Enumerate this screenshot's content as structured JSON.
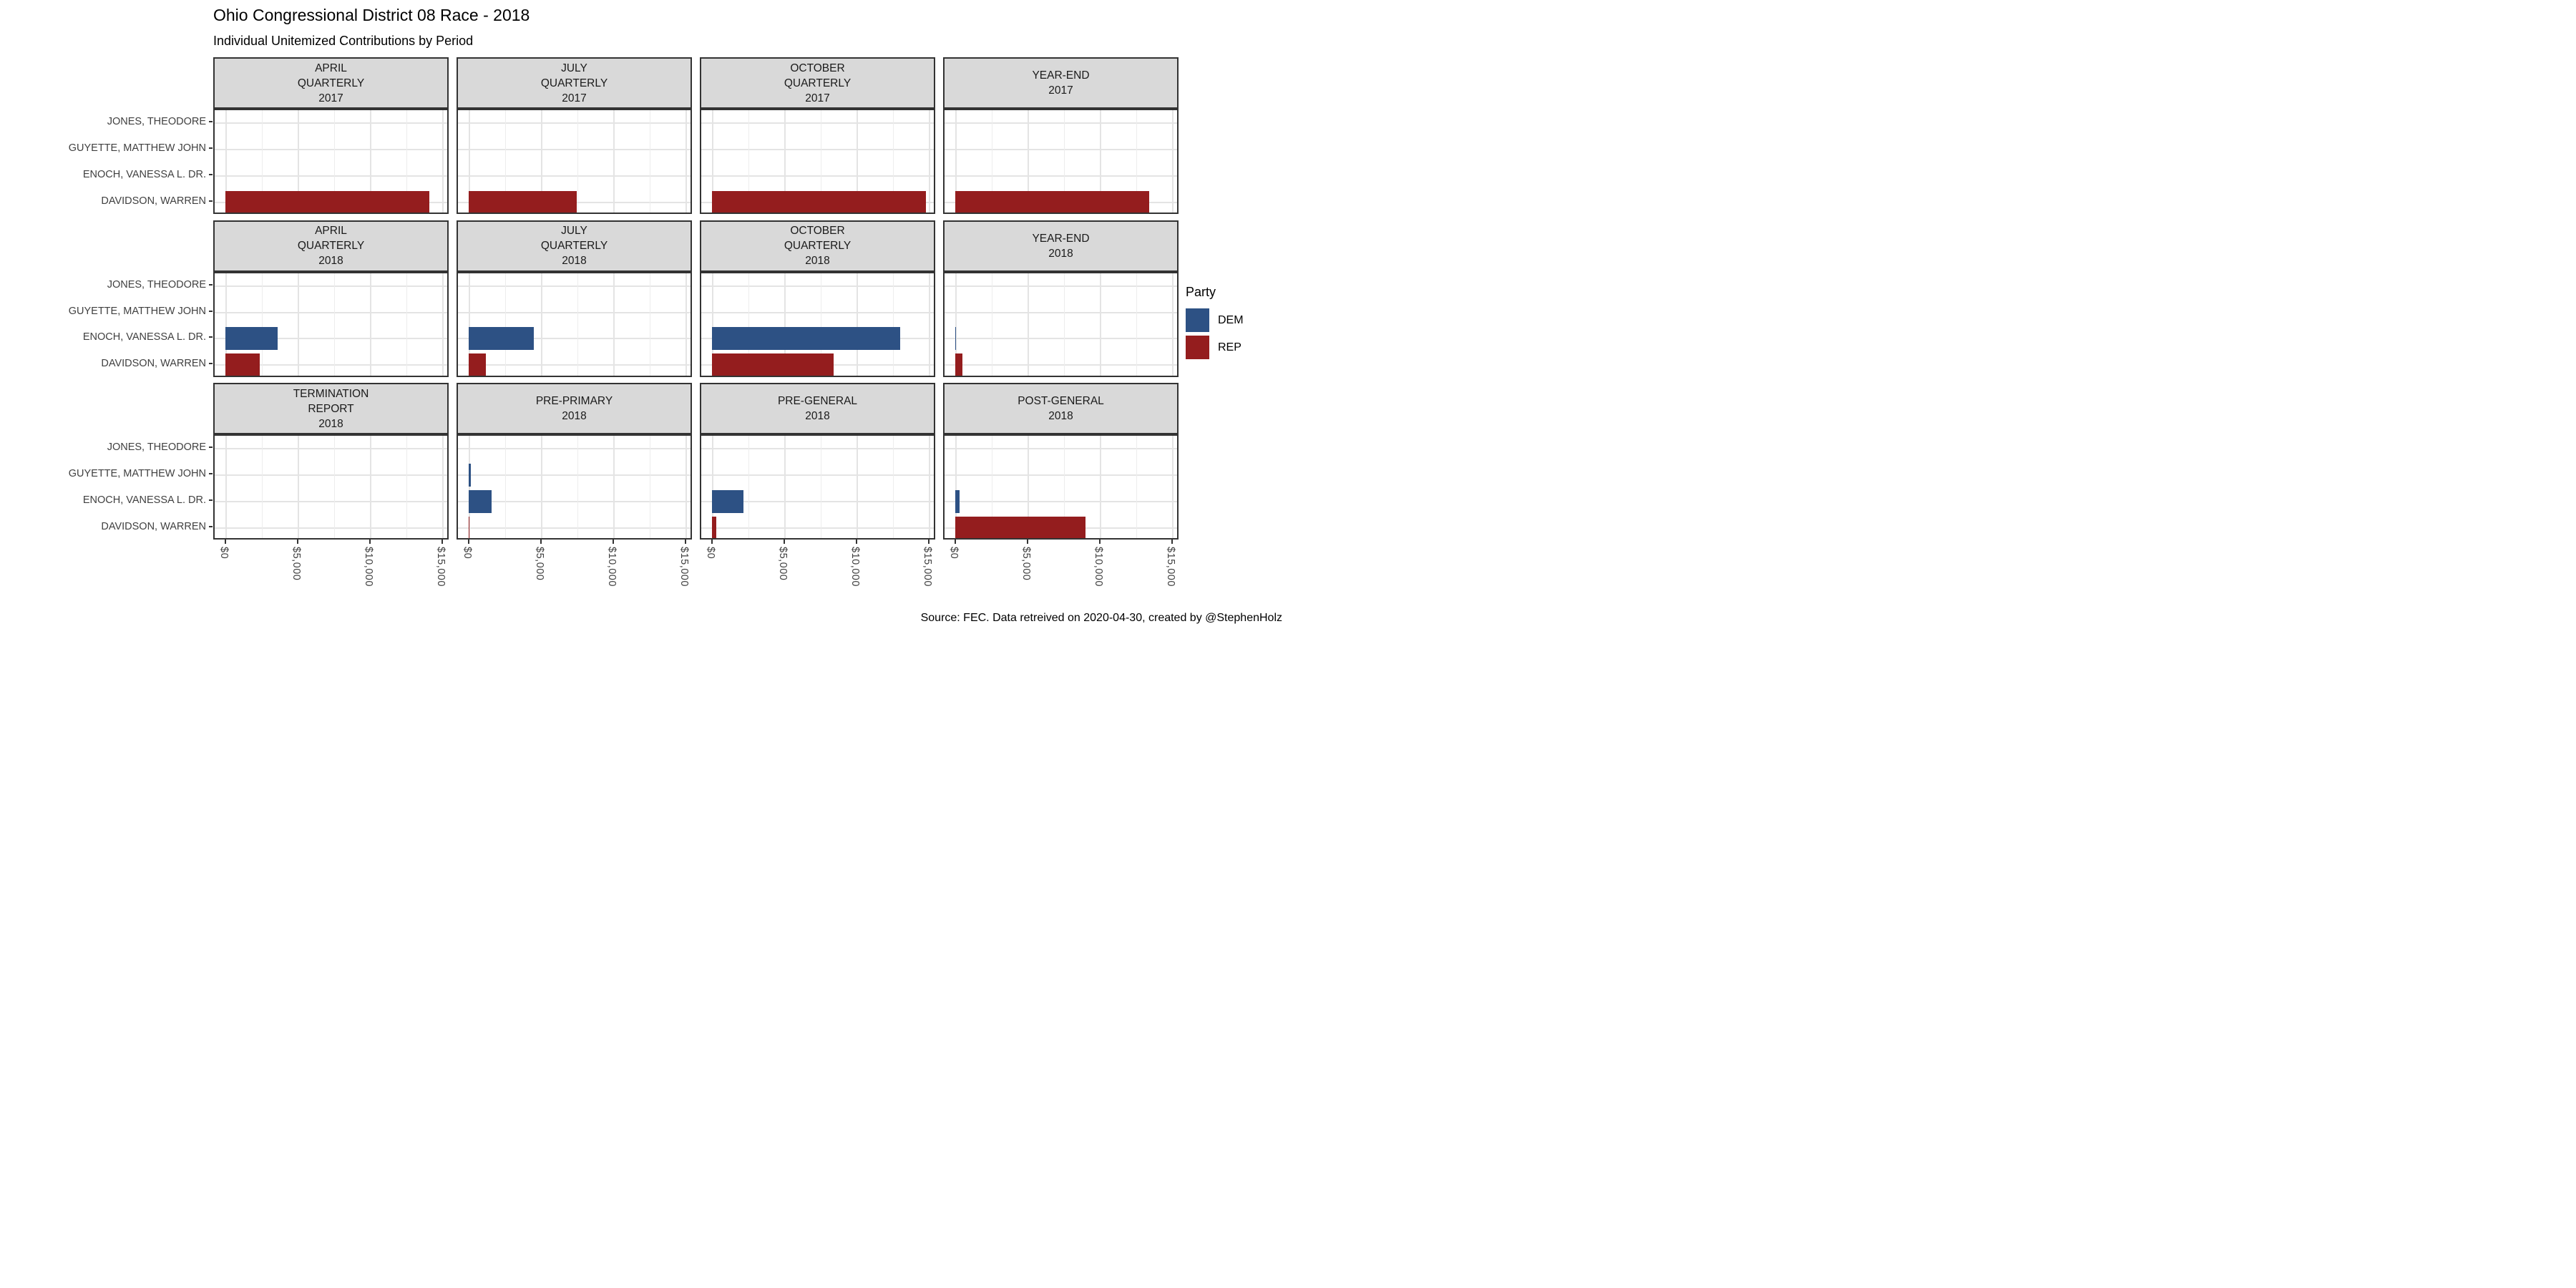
{
  "header": {
    "title": "Ohio Congressional District 08 Race - 2018",
    "subtitle": "Individual Unitemized Contributions by Period"
  },
  "caption": "Source: FEC. Data retreived on 2020-04-30, created by @StephenHolz",
  "legend": {
    "title": "Party",
    "entries": [
      {
        "label": "DEM",
        "color": "#2D5184"
      },
      {
        "label": "REP",
        "color": "#941D1E"
      }
    ]
  },
  "colors": {
    "dem": "#2D5184",
    "rep": "#941D1E",
    "strip_bg": "#D9D9D9",
    "panel_border": "#333333",
    "grid_major": "#E4E4E4",
    "grid_minor": "#EDEDED",
    "axis_text": "#404040"
  },
  "chart_data": {
    "type": "bar",
    "orientation": "horizontal",
    "title": "Ohio Congressional District 08 Race - 2018",
    "subtitle": "Individual Unitemized Contributions by Period",
    "categories": [
      "JONES, THEODORE",
      "GUYETTE, MATTHEW JOHN",
      "ENOCH, VANESSA L. DR.",
      "DAVIDSON, WARREN"
    ],
    "x_ticks": [
      {
        "label": "$0",
        "value": 0
      },
      {
        "label": "$5,000",
        "value": 5000
      },
      {
        "label": "$10,000",
        "value": 10000
      },
      {
        "label": "$15,000",
        "value": 15000
      }
    ],
    "x_minor_ticks": [
      2500,
      7500,
      12500
    ],
    "xlim": [
      0,
      15750
    ],
    "grid": true,
    "legend_position": "right",
    "facet_layout": {
      "rows": 3,
      "cols": 4
    },
    "facets": [
      {
        "strip_lines": [
          "APRIL",
          "QUARTERLY",
          "2017"
        ],
        "bars": [
          {
            "candidate": "DAVIDSON, WARREN",
            "party": "REP",
            "value": 14100
          }
        ]
      },
      {
        "strip_lines": [
          "JULY",
          "QUARTERLY",
          "2017"
        ],
        "bars": [
          {
            "candidate": "DAVIDSON, WARREN",
            "party": "REP",
            "value": 7500
          }
        ]
      },
      {
        "strip_lines": [
          "OCTOBER",
          "QUARTERLY",
          "2017"
        ],
        "bars": [
          {
            "candidate": "DAVIDSON, WARREN",
            "party": "REP",
            "value": 14800
          }
        ]
      },
      {
        "strip_lines": [
          "YEAR-END",
          "2017"
        ],
        "bars": [
          {
            "candidate": "DAVIDSON, WARREN",
            "party": "REP",
            "value": 13400
          }
        ]
      },
      {
        "strip_lines": [
          "APRIL",
          "QUARTERLY",
          "2018"
        ],
        "bars": [
          {
            "candidate": "ENOCH, VANESSA L. DR.",
            "party": "DEM",
            "value": 3600
          },
          {
            "candidate": "DAVIDSON, WARREN",
            "party": "REP",
            "value": 2400
          }
        ]
      },
      {
        "strip_lines": [
          "JULY",
          "QUARTERLY",
          "2018"
        ],
        "bars": [
          {
            "candidate": "ENOCH, VANESSA L. DR.",
            "party": "DEM",
            "value": 4500
          },
          {
            "candidate": "DAVIDSON, WARREN",
            "party": "REP",
            "value": 1200
          }
        ]
      },
      {
        "strip_lines": [
          "OCTOBER",
          "QUARTERLY",
          "2018"
        ],
        "bars": [
          {
            "candidate": "ENOCH, VANESSA L. DR.",
            "party": "DEM",
            "value": 13000
          },
          {
            "candidate": "DAVIDSON, WARREN",
            "party": "REP",
            "value": 8400
          }
        ]
      },
      {
        "strip_lines": [
          "YEAR-END",
          "2018"
        ],
        "bars": [
          {
            "candidate": "ENOCH, VANESSA L. DR.",
            "party": "DEM",
            "value": 70
          },
          {
            "candidate": "DAVIDSON, WARREN",
            "party": "REP",
            "value": 480
          }
        ]
      },
      {
        "strip_lines": [
          "TERMINATION",
          "REPORT",
          "2018"
        ],
        "bars": []
      },
      {
        "strip_lines": [
          "PRE-PRIMARY",
          "2018"
        ],
        "bars": [
          {
            "candidate": "GUYETTE, MATTHEW JOHN",
            "party": "DEM",
            "value": 150
          },
          {
            "candidate": "ENOCH, VANESSA L. DR.",
            "party": "DEM",
            "value": 1600
          },
          {
            "candidate": "DAVIDSON, WARREN",
            "party": "REP",
            "value": 50
          }
        ]
      },
      {
        "strip_lines": [
          "PRE-GENERAL",
          "2018"
        ],
        "bars": [
          {
            "candidate": "ENOCH, VANESSA L. DR.",
            "party": "DEM",
            "value": 2200
          },
          {
            "candidate": "DAVIDSON, WARREN",
            "party": "REP",
            "value": 300
          }
        ]
      },
      {
        "strip_lines": [
          "POST-GENERAL",
          "2018"
        ],
        "bars": [
          {
            "candidate": "ENOCH, VANESSA L. DR.",
            "party": "DEM",
            "value": 300
          },
          {
            "candidate": "DAVIDSON, WARREN",
            "party": "REP",
            "value": 9000
          }
        ]
      }
    ]
  }
}
